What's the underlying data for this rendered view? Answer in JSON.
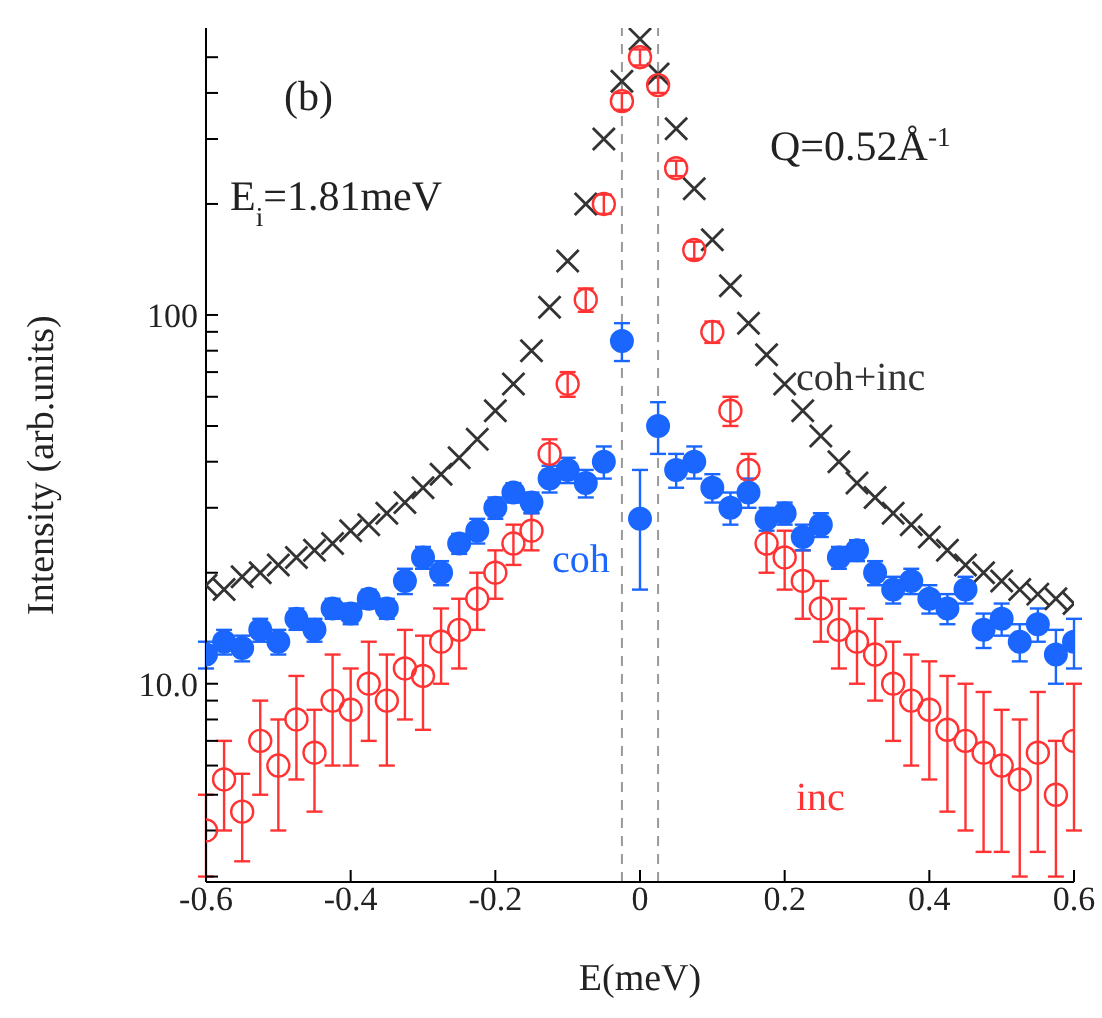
{
  "chart_data": {
    "type": "scatter",
    "xlabel": "E(meV)",
    "ylabel": "Intensity (arb.units)",
    "annotations": [
      "(b)",
      "E$_{i}$=1.81meV",
      "Q=0.52Å$^{-1}$"
    ],
    "x": [
      -0.6,
      -0.575,
      -0.55,
      -0.525,
      -0.5,
      -0.475,
      -0.45,
      -0.425,
      -0.4,
      -0.375,
      -0.35,
      -0.325,
      -0.3,
      -0.275,
      -0.25,
      -0.225,
      -0.2,
      -0.175,
      -0.15,
      -0.125,
      -0.1,
      -0.075,
      -0.05,
      -0.025,
      0,
      0.025,
      0.05,
      0.075,
      0.1,
      0.125,
      0.15,
      0.175,
      0.2,
      0.225,
      0.25,
      0.275,
      0.3,
      0.325,
      0.35,
      0.375,
      0.4,
      0.425,
      0.45,
      0.475,
      0.5,
      0.525,
      0.55,
      0.575,
      0.6
    ],
    "series": [
      {
        "name": "coh+inc",
        "color": "#333333",
        "marker": "cross",
        "values": [
          18.5,
          18,
          19.5,
          20,
          21,
          22,
          23,
          24,
          26,
          27,
          29,
          31,
          34,
          37,
          41,
          46,
          55,
          65,
          80,
          105,
          140,
          200,
          300,
          430,
          560,
          450,
          320,
          220,
          160,
          120,
          95,
          78,
          65,
          55,
          47,
          40,
          35,
          32,
          29,
          27,
          25,
          23,
          21,
          20,
          19,
          18,
          17.5,
          17,
          16.5
        ]
      },
      {
        "name": "inc",
        "color": "#ff3333",
        "marker": "circle_open",
        "values": [
          4,
          5.5,
          4.5,
          7,
          6,
          8,
          6.5,
          9,
          8.5,
          10,
          9,
          11,
          10.5,
          13,
          14,
          17,
          20,
          24,
          26,
          42,
          65,
          110,
          200,
          380,
          500,
          420,
          250,
          150,
          90,
          55,
          38,
          24,
          22,
          19,
          16,
          14,
          13,
          12,
          10,
          9,
          8.5,
          7.5,
          7,
          6.5,
          6,
          5.5,
          6.5,
          5,
          7
        ],
        "errors": [
          1,
          1.5,
          1.2,
          2,
          2,
          2.5,
          2,
          3,
          2.5,
          3,
          3,
          3,
          3,
          3,
          3,
          3,
          3,
          3,
          3,
          4,
          5,
          8,
          12,
          20,
          25,
          20,
          12,
          8,
          6,
          5,
          4,
          4,
          4,
          4,
          3,
          3,
          3,
          3,
          3,
          3,
          3,
          3,
          3,
          3,
          2.5,
          2.5,
          3,
          2,
          3
        ]
      },
      {
        "name": "coh",
        "color": "#1a66ff",
        "marker": "circle",
        "values": [
          12,
          13,
          12.5,
          14,
          13,
          15,
          14,
          16,
          15.5,
          17,
          16,
          19,
          22,
          20,
          24,
          26,
          30,
          33,
          31,
          36,
          38,
          35,
          40,
          85,
          28,
          50,
          38,
          40,
          34,
          30,
          33,
          28,
          29,
          25,
          27,
          22,
          23,
          20,
          18,
          19,
          17,
          16,
          18,
          14,
          15,
          13,
          14.5,
          12,
          13
        ],
        "errors": [
          1,
          1,
          1,
          1,
          1,
          1,
          1,
          1,
          1,
          1,
          1,
          1.5,
          1.5,
          1.5,
          1.5,
          2,
          2,
          2,
          2,
          3,
          3,
          3,
          4,
          10,
          10,
          8,
          4,
          4,
          3,
          3,
          3,
          2,
          2,
          2,
          2,
          1.5,
          1.5,
          1.5,
          1.5,
          1.5,
          1.5,
          1.5,
          1.5,
          1.5,
          1.5,
          1.5,
          1.5,
          2,
          2
        ]
      }
    ],
    "log": "y",
    "xlim": [
      -0.6,
      0.6
    ],
    "xticks": [
      -0.6,
      -0.4,
      -0.2,
      0,
      0.2,
      0.4,
      0.6
    ],
    "ylim": [
      2.9,
      600
    ],
    "yticks": [
      {
        "value": 3,
        "label": null
      },
      {
        "value": 4,
        "label": null
      },
      {
        "value": 5,
        "label": null
      },
      {
        "value": 6,
        "label": null
      },
      {
        "value": 7,
        "label": null
      },
      {
        "value": 8,
        "label": null
      },
      {
        "value": 9,
        "label": null
      },
      {
        "value": 10,
        "label": "10.0"
      },
      {
        "value": 20,
        "label": null
      },
      {
        "value": 30,
        "label": null
      },
      {
        "value": 40,
        "label": null
      },
      {
        "value": 50,
        "label": null
      },
      {
        "value": 60,
        "label": null
      },
      {
        "value": 70,
        "label": null
      },
      {
        "value": 80,
        "label": null
      },
      {
        "value": 90,
        "label": null
      },
      100,
      {
        "value": 200,
        "label": null
      },
      {
        "value": 300,
        "label": null
      },
      {
        "value": 400,
        "label": null
      },
      {
        "value": 500,
        "label": null
      }
    ],
    "ref_lines": [
      {
        "axis": "x",
        "value": -0.025,
        "color": "#999999",
        "line_style": "dashed"
      },
      {
        "axis": "x",
        "value": 0.025,
        "color": "#999999",
        "line_style": "dashed"
      }
    ],
    "grid": false,
    "legend": false
  }
}
